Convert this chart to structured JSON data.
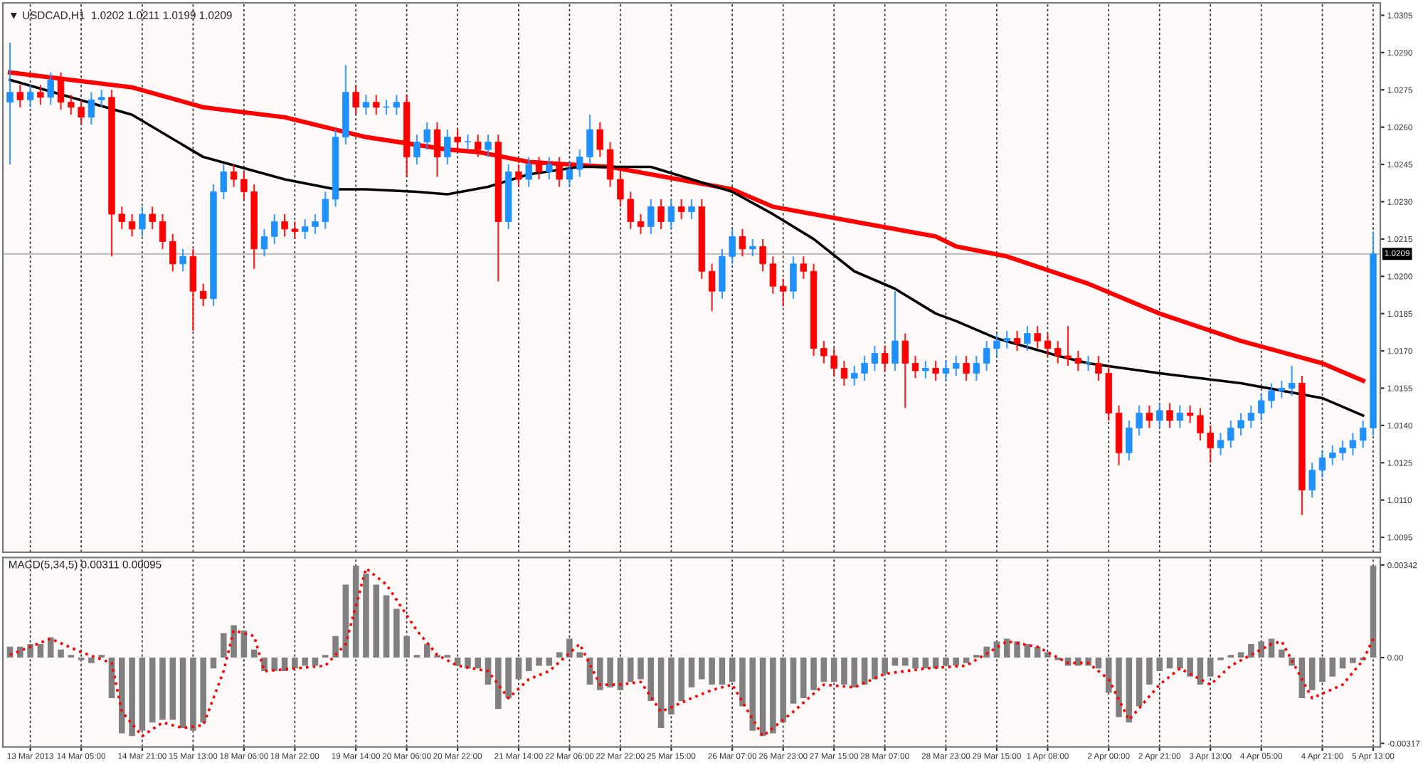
{
  "chart_data": [
    {
      "type": "candlestick",
      "title": "▼ USDCAD,H1  1.0202 1.0211 1.0199 1.0209",
      "categories": [
        null,
        null,
        null,
        null,
        null,
        null,
        null,
        null,
        null,
        null,
        null,
        null,
        null,
        null,
        null,
        null,
        null,
        null,
        null,
        null,
        null,
        null,
        null,
        null,
        null,
        null,
        null,
        null,
        null,
        null,
        null,
        null,
        null,
        null,
        null,
        null,
        null,
        null,
        null,
        null,
        null,
        null,
        null,
        null,
        null,
        null,
        null,
        null,
        null,
        null,
        null,
        null,
        null,
        null,
        null,
        null,
        null,
        null,
        null,
        null,
        null,
        null,
        null,
        null,
        null,
        null,
        null,
        null,
        null,
        null,
        null,
        null,
        null,
        null,
        null,
        null,
        null,
        null,
        null,
        null,
        null,
        null,
        null,
        null,
        null,
        null,
        null,
        null,
        null,
        null,
        null,
        null,
        null,
        null,
        null,
        null,
        null,
        null,
        null,
        null,
        null,
        null,
        null,
        null,
        null,
        null,
        null,
        null,
        null,
        null,
        null,
        null,
        null,
        null,
        null,
        null,
        null,
        null,
        null,
        null,
        null,
        null,
        null,
        null,
        null,
        null,
        null,
        null,
        null,
        null,
        null,
        null,
        null,
        null,
        null
      ],
      "ohlc": [
        [
          1.027,
          1.0294,
          1.0245,
          1.0274
        ],
        [
          1.0274,
          1.0277,
          1.0268,
          1.0271
        ],
        [
          1.0271,
          1.0277,
          1.0268,
          1.0274
        ],
        [
          1.0274,
          1.0277,
          1.0269,
          1.0272
        ],
        [
          1.0272,
          1.0282,
          1.0269,
          1.0279
        ],
        [
          1.0279,
          1.0282,
          1.0267,
          1.027
        ],
        [
          1.027,
          1.0273,
          1.0265,
          1.0268
        ],
        [
          1.0268,
          1.0271,
          1.0261,
          1.0264
        ],
        [
          1.0264,
          1.0274,
          1.0261,
          1.0271
        ],
        [
          1.0271,
          1.0275,
          1.0268,
          1.0272
        ],
        [
          1.0272,
          1.0275,
          1.0208,
          1.0225
        ],
        [
          1.0225,
          1.0228,
          1.0219,
          1.0222
        ],
        [
          1.0222,
          1.0225,
          1.0216,
          1.0219
        ],
        [
          1.0219,
          1.0228,
          1.0216,
          1.0225
        ],
        [
          1.0225,
          1.0228,
          1.0219,
          1.0222
        ],
        [
          1.0222,
          1.0225,
          1.0211,
          1.0214
        ],
        [
          1.0214,
          1.0217,
          1.0202,
          1.0205
        ],
        [
          1.0205,
          1.0211,
          1.0202,
          1.0208
        ],
        [
          1.0208,
          1.0211,
          1.0178,
          1.0194
        ],
        [
          1.0194,
          1.0197,
          1.0188,
          1.0191
        ],
        [
          1.0191,
          1.0237,
          1.0188,
          1.0234
        ],
        [
          1.0234,
          1.0245,
          1.0231,
          1.0242
        ],
        [
          1.0242,
          1.0245,
          1.0236,
          1.0239
        ],
        [
          1.0239,
          1.0242,
          1.0231,
          1.0234
        ],
        [
          1.0234,
          1.0237,
          1.0203,
          1.0211
        ],
        [
          1.0211,
          1.0219,
          1.0208,
          1.0216
        ],
        [
          1.0216,
          1.0225,
          1.0213,
          1.0222
        ],
        [
          1.0222,
          1.0225,
          1.0216,
          1.0219
        ],
        [
          1.0219,
          1.0222,
          1.0215,
          1.0218
        ],
        [
          1.0218,
          1.0223,
          1.0215,
          1.022
        ],
        [
          1.022,
          1.0225,
          1.0217,
          1.0222
        ],
        [
          1.0222,
          1.0234,
          1.0219,
          1.0231
        ],
        [
          1.0231,
          1.0259,
          1.0228,
          1.0256
        ],
        [
          1.0256,
          1.0285,
          1.0253,
          1.0274
        ],
        [
          1.0274,
          1.0277,
          1.0265,
          1.0268
        ],
        [
          1.0268,
          1.0273,
          1.0265,
          1.027
        ],
        [
          1.027,
          1.0273,
          1.0265,
          1.0268
        ],
        [
          1.0268,
          1.0271,
          1.0265,
          1.0268
        ],
        [
          1.0268,
          1.0273,
          1.0265,
          1.027
        ],
        [
          1.027,
          1.0273,
          1.024,
          1.0248
        ],
        [
          1.0248,
          1.0257,
          1.0245,
          1.0254
        ],
        [
          1.0254,
          1.0262,
          1.0251,
          1.0259
        ],
        [
          1.0259,
          1.0262,
          1.024,
          1.0248
        ],
        [
          1.0248,
          1.0259,
          1.0245,
          1.0256
        ],
        [
          1.0256,
          1.0259,
          1.0251,
          1.0254
        ],
        [
          1.0254,
          1.0257,
          1.0251,
          1.0254
        ],
        [
          1.0254,
          1.0257,
          1.0248,
          1.0251
        ],
        [
          1.0251,
          1.0257,
          1.0248,
          1.0254
        ],
        [
          1.0254,
          1.0257,
          1.0198,
          1.0222
        ],
        [
          1.0222,
          1.0245,
          1.0219,
          1.0242
        ],
        [
          1.0242,
          1.0245,
          1.0236,
          1.0239
        ],
        [
          1.0239,
          1.0248,
          1.0236,
          1.0245
        ],
        [
          1.0245,
          1.0248,
          1.0239,
          1.0242
        ],
        [
          1.0242,
          1.0248,
          1.0239,
          1.0245
        ],
        [
          1.0245,
          1.0248,
          1.0236,
          1.0239
        ],
        [
          1.0239,
          1.0246,
          1.0236,
          1.0243
        ],
        [
          1.0243,
          1.0251,
          1.024,
          1.0248
        ],
        [
          1.0248,
          1.0265,
          1.0245,
          1.0259
        ],
        [
          1.0259,
          1.0262,
          1.0248,
          1.0251
        ],
        [
          1.0251,
          1.0254,
          1.0236,
          1.0239
        ],
        [
          1.0239,
          1.0242,
          1.0228,
          1.0231
        ],
        [
          1.0231,
          1.0234,
          1.0219,
          1.0222
        ],
        [
          1.0222,
          1.0225,
          1.0217,
          1.022
        ],
        [
          1.022,
          1.0231,
          1.0217,
          1.0228
        ],
        [
          1.0228,
          1.0231,
          1.0219,
          1.0222
        ],
        [
          1.0222,
          1.0231,
          1.0219,
          1.0228
        ],
        [
          1.0228,
          1.0231,
          1.0223,
          1.0226
        ],
        [
          1.0226,
          1.0231,
          1.0223,
          1.0228
        ],
        [
          1.0228,
          1.0231,
          1.0199,
          1.0202
        ],
        [
          1.0202,
          1.0205,
          1.0186,
          1.0194
        ],
        [
          1.0194,
          1.0211,
          1.0191,
          1.0208
        ],
        [
          1.0208,
          1.0219,
          1.0205,
          1.0216
        ],
        [
          1.0216,
          1.0219,
          1.0208,
          1.0211
        ],
        [
          1.0211,
          1.0215,
          1.0208,
          1.0212
        ],
        [
          1.0212,
          1.0215,
          1.0202,
          1.0205
        ],
        [
          1.0205,
          1.0208,
          1.0193,
          1.0196
        ],
        [
          1.0196,
          1.0199,
          1.0188,
          1.0194
        ],
        [
          1.0194,
          1.0208,
          1.0191,
          1.0205
        ],
        [
          1.0205,
          1.0208,
          1.0199,
          1.0202
        ],
        [
          1.0202,
          1.0205,
          1.0168,
          1.0171
        ],
        [
          1.0171,
          1.0174,
          1.0165,
          1.0168
        ],
        [
          1.0168,
          1.0171,
          1.016,
          1.0163
        ],
        [
          1.0163,
          1.0166,
          1.0156,
          1.0159
        ],
        [
          1.0159,
          1.0164,
          1.0156,
          1.0161
        ],
        [
          1.0161,
          1.0168,
          1.0158,
          1.0165
        ],
        [
          1.0165,
          1.0172,
          1.0162,
          1.0169
        ],
        [
          1.0169,
          1.0172,
          1.0162,
          1.0165
        ],
        [
          1.0165,
          1.0194,
          1.0162,
          1.0174
        ],
        [
          1.0174,
          1.0177,
          1.0147,
          1.0165
        ],
        [
          1.0165,
          1.0168,
          1.0159,
          1.0162
        ],
        [
          1.0162,
          1.0166,
          1.0159,
          1.0163
        ],
        [
          1.0163,
          1.0166,
          1.0158,
          1.0161
        ],
        [
          1.0161,
          1.0166,
          1.0158,
          1.0163
        ],
        [
          1.0163,
          1.0168,
          1.016,
          1.0165
        ],
        [
          1.0165,
          1.0168,
          1.0158,
          1.0161
        ],
        [
          1.0161,
          1.0168,
          1.0158,
          1.0165
        ],
        [
          1.0165,
          1.0174,
          1.0162,
          1.0171
        ],
        [
          1.0171,
          1.0177,
          1.0168,
          1.0174
        ],
        [
          1.0174,
          1.0178,
          1.0171,
          1.0175
        ],
        [
          1.0175,
          1.0178,
          1.017,
          1.0173
        ],
        [
          1.0173,
          1.018,
          1.017,
          1.0177
        ],
        [
          1.0177,
          1.018,
          1.0171,
          1.0174
        ],
        [
          1.0174,
          1.0177,
          1.0168,
          1.0171
        ],
        [
          1.0171,
          1.0174,
          1.0165,
          1.0168
        ],
        [
          1.0168,
          1.018,
          1.0164,
          1.0167
        ],
        [
          1.0167,
          1.017,
          1.0162,
          1.0165
        ],
        [
          1.0165,
          1.0168,
          1.0162,
          1.0165
        ],
        [
          1.0165,
          1.0168,
          1.0158,
          1.0161
        ],
        [
          1.0161,
          1.0164,
          1.0142,
          1.0145
        ],
        [
          1.0145,
          1.0148,
          1.0124,
          1.0129
        ],
        [
          1.0129,
          1.0142,
          1.0126,
          1.0139
        ],
        [
          1.0139,
          1.0148,
          1.0136,
          1.0145
        ],
        [
          1.0145,
          1.0148,
          1.0139,
          1.0142
        ],
        [
          1.0142,
          1.0149,
          1.0139,
          1.0146
        ],
        [
          1.0146,
          1.0149,
          1.0139,
          1.0142
        ],
        [
          1.0142,
          1.0148,
          1.0139,
          1.0145
        ],
        [
          1.0145,
          1.0148,
          1.0141,
          1.0144
        ],
        [
          1.0144,
          1.0147,
          1.0134,
          1.0137
        ],
        [
          1.0137,
          1.014,
          1.0125,
          1.0131
        ],
        [
          1.0131,
          1.0137,
          1.0128,
          1.0134
        ],
        [
          1.0134,
          1.0142,
          1.0131,
          1.0139
        ],
        [
          1.0139,
          1.0145,
          1.0136,
          1.0142
        ],
        [
          1.0142,
          1.0148,
          1.0139,
          1.0145
        ],
        [
          1.0145,
          1.0153,
          1.0142,
          1.015
        ],
        [
          1.015,
          1.0157,
          1.0147,
          1.0154
        ],
        [
          1.0154,
          1.0158,
          1.0151,
          1.0155
        ],
        [
          1.0155,
          1.0164,
          1.0152,
          1.0157
        ],
        [
          1.0157,
          1.016,
          1.0104,
          1.0114
        ],
        [
          1.0114,
          1.0125,
          1.0111,
          1.0122
        ],
        [
          1.0122,
          1.013,
          1.0119,
          1.0127
        ],
        [
          1.0127,
          1.0132,
          1.0124,
          1.0129
        ],
        [
          1.0129,
          1.0134,
          1.0126,
          1.0131
        ],
        [
          1.0131,
          1.0137,
          1.0128,
          1.0134
        ],
        [
          1.0134,
          1.0142,
          1.0131,
          1.0139
        ],
        [
          1.0139,
          1.0218,
          1.0136,
          1.0209
        ]
      ],
      "series": [
        {
          "type": "line",
          "color": "#ff0000",
          "values": [
            1.0282,
            null,
            null,
            null,
            null,
            null,
            null,
            null,
            null,
            null,
            null,
            null,
            1.0276,
            null,
            null,
            null,
            null,
            null,
            null,
            1.0268,
            null,
            null,
            null,
            null,
            null,
            null,
            null,
            1.0264,
            null,
            null,
            null,
            null,
            null,
            null,
            null,
            1.0256,
            null,
            null,
            null,
            null,
            null,
            null,
            null,
            1.0251,
            null,
            null,
            1.025,
            null,
            null,
            null,
            null,
            1.0246,
            null,
            null,
            null,
            null,
            null,
            null,
            null,
            1.0244,
            null,
            null,
            null,
            null,
            null,
            null,
            null,
            1.0238,
            null,
            null,
            null,
            1.0235,
            null,
            null,
            null,
            1.0228,
            null,
            null,
            null,
            null,
            null,
            null,
            null,
            1.0222,
            null,
            null,
            null,
            null,
            null,
            null,
            null,
            1.0216,
            null,
            1.0212,
            null,
            null,
            null,
            null,
            1.0208,
            null,
            null,
            null,
            null,
            null,
            null,
            null,
            1.0197,
            null,
            null,
            null,
            null,
            null,
            null,
            1.0185,
            null,
            null,
            null,
            null,
            null,
            null,
            null,
            1.0174,
            null,
            null,
            null,
            null,
            null,
            null,
            null,
            1.0165,
            null,
            null,
            null,
            1.0158,
            null
          ]
        },
        {
          "type": "line",
          "color": "#000000",
          "values": [
            1.0279,
            null,
            null,
            null,
            null,
            null,
            null,
            null,
            null,
            null,
            null,
            null,
            1.0265,
            null,
            null,
            null,
            null,
            null,
            null,
            1.0248,
            null,
            null,
            null,
            null,
            null,
            null,
            null,
            1.0239,
            null,
            null,
            null,
            null,
            1.0235,
            null,
            null,
            1.0235,
            null,
            null,
            null,
            null,
            1.0234,
            null,
            null,
            1.0233,
            null,
            null,
            null,
            1.0236,
            null,
            null,
            null,
            1.0241,
            null,
            null,
            null,
            null,
            1.0244,
            null,
            null,
            null,
            null,
            null,
            null,
            1.0244,
            null,
            null,
            null,
            1.0239,
            null,
            null,
            null,
            1.0234,
            null,
            null,
            null,
            1.0225,
            null,
            null,
            null,
            1.0215,
            null,
            null,
            null,
            1.0202,
            null,
            null,
            null,
            1.0195,
            null,
            null,
            null,
            1.0185,
            null,
            1.0182,
            null,
            null,
            null,
            1.0175,
            null,
            null,
            null,
            null,
            null,
            1.0168,
            null,
            null,
            1.0165,
            null,
            null,
            null,
            null,
            null,
            null,
            1.0161,
            null,
            null,
            null,
            null,
            null,
            null,
            null,
            1.0157,
            null,
            null,
            null,
            null,
            null,
            null,
            null,
            1.0151,
            null,
            null,
            null,
            1.0144,
            null
          ]
        }
      ],
      "ylim": [
        1.0089,
        1.031
      ],
      "yticks": [
        1.0095,
        {
          "value": 1.011,
          "label": "1.0110"
        },
        1.0125,
        {
          "value": 1.014,
          "label": "1.0140"
        },
        1.0155,
        {
          "value": 1.017,
          "label": "1.0170"
        },
        1.0185,
        {
          "value": 1.02,
          "label": "1.0200"
        },
        1.0215,
        {
          "value": 1.023,
          "label": "1.0230"
        },
        1.0245,
        {
          "value": 1.026,
          "label": "1.0260"
        },
        1.0275,
        {
          "value": 1.029,
          "label": "1.0290"
        },
        1.0305
      ],
      "grid": "x",
      "tick_labels": "y",
      "ref_lines": [
        {
          "axis": "y",
          "value": 1.0209,
          "label": "1.0209",
          "color": "#c0c0c0"
        }
      ]
    },
    {
      "type": "bar",
      "title": "MACD(5,34,5) 0.00311 0.00095",
      "categories": [
        null,
        null,
        "13 Mar 2013",
        null,
        null,
        null,
        null,
        "14 Mar 05:00",
        null,
        null,
        null,
        null,
        null,
        "14 Mar 21:00",
        null,
        null,
        null,
        null,
        "15 Mar 13:00",
        null,
        null,
        null,
        null,
        "18 Mar 06:00",
        null,
        null,
        null,
        null,
        "18 Mar 22:00",
        null,
        null,
        null,
        null,
        null,
        "19 Mar 14:00",
        null,
        null,
        null,
        null,
        "20 Mar 06:00",
        null,
        null,
        null,
        null,
        "20 Mar 22:00",
        null,
        null,
        null,
        null,
        null,
        "21 Mar 14:00",
        null,
        null,
        null,
        null,
        "22 Mar 06:00",
        null,
        null,
        null,
        null,
        "22 Mar 22:00",
        null,
        null,
        null,
        null,
        "25 Mar 15:00",
        null,
        null,
        null,
        null,
        null,
        "26 Mar 07:00",
        null,
        null,
        null,
        null,
        "26 Mar 23:00",
        null,
        null,
        null,
        null,
        "27 Mar 15:00",
        null,
        null,
        null,
        null,
        "28 Mar 07:00",
        null,
        null,
        null,
        null,
        null,
        "28 Mar 23:00",
        null,
        null,
        null,
        null,
        "29 Mar 15:00",
        null,
        null,
        null,
        null,
        "1 Apr 08:00",
        null,
        null,
        null,
        null,
        null,
        "2 Apr 00:00",
        null,
        null,
        null,
        null,
        "2 Apr 21:00",
        null,
        null,
        null,
        null,
        "3 Apr 13:00",
        null,
        null,
        null,
        null,
        "4 Apr 05:00",
        null,
        null,
        null,
        null,
        null,
        "4 Apr 21:00",
        null,
        null,
        null,
        null,
        "5 Apr 13:00"
      ],
      "series": [
        {
          "type": "bar",
          "color": "#808080",
          "values": [
            0.0004,
            0.0004,
            0.0005,
            0.0005,
            0.00075,
            0.0003,
            0.0001,
            -0.0001,
            -0.0002,
            0.0001,
            -0.0015,
            -0.0028,
            -0.0029,
            -0.0027,
            -0.0024,
            -0.0023,
            -0.0023,
            -0.0026,
            -0.0027,
            -0.0024,
            -0.0004,
            0.0009,
            0.0012,
            0.001,
            0.0003,
            -0.0005,
            -0.0005,
            -0.0005,
            -0.0004,
            -0.0003,
            -0.0003,
            0.0001,
            0.0008,
            0.0027,
            0.0034,
            0.0031,
            0.0027,
            0.0023,
            0.0018,
            0.0008,
            0.0001,
            0.0005,
            0.0001,
            0.0001,
            -0.0003,
            -0.0004,
            -0.0004,
            -0.001,
            -0.0019,
            -0.0015,
            -0.0008,
            -0.0005,
            -0.0003,
            -0.0003,
            0.0002,
            0.0007,
            0.0002,
            -0.001,
            -0.0012,
            -0.0011,
            -0.0012,
            -0.0009,
            -0.0008,
            -0.0016,
            -0.0026,
            -0.0021,
            -0.0016,
            -0.0011,
            -0.0008,
            -0.001,
            -0.001,
            -0.0009,
            -0.0018,
            -0.0027,
            -0.0029,
            -0.0028,
            -0.0024,
            -0.0017,
            -0.0015,
            -0.0012,
            -0.0009,
            -0.0009,
            -0.001,
            -0.0011,
            -0.001,
            -0.0008,
            -0.0006,
            -0.0003,
            -0.0003,
            -0.0004,
            -0.0004,
            -0.0004,
            -0.0003,
            -0.0003,
            -0.0002,
            0.0001,
            0.0004,
            0.0006,
            0.0007,
            0.0006,
            0.0005,
            0.0004,
            0.0002,
            -0.0001,
            -0.0003,
            -0.0003,
            -0.0003,
            -0.0004,
            -0.0013,
            -0.0022,
            -0.0024,
            -0.0018,
            -0.001,
            -0.0005,
            -0.0004,
            -0.0004,
            -0.0007,
            -0.001,
            -0.0007,
            -0.0001,
            0.0001,
            0.0002,
            0.0005,
            0.0006,
            0.0007,
            0.0003,
            -0.0003,
            -0.0015,
            -0.0012,
            -0.0009,
            -0.0007,
            -0.0004,
            -0.0002,
            -0.0001,
            0.0034
          ]
        },
        {
          "type": "line",
          "color": "#ff0000",
          "line_style": "dotted",
          "values": [
            0.0001,
            null,
            null,
            null,
            0.0007,
            null,
            null,
            0.0002,
            null,
            null,
            -0.0002,
            -0.002,
            null,
            -0.0029,
            null,
            -0.0024,
            null,
            -0.0026,
            null,
            -0.0025,
            null,
            -0.0005,
            0.001,
            null,
            0.0008,
            -0.0005,
            null,
            null,
            -0.0004,
            null,
            null,
            -0.0003,
            null,
            0.0005,
            null,
            0.0033,
            null,
            0.0027,
            null,
            null,
            0.001,
            null,
            0.0001,
            null,
            -0.0003,
            null,
            null,
            -0.0005,
            null,
            -0.0015,
            null,
            -0.0008,
            null,
            -0.0005,
            null,
            null,
            0.0005,
            null,
            -0.001,
            null,
            -0.001,
            null,
            -0.0009,
            null,
            -0.002,
            null,
            null,
            -0.0015,
            null,
            -0.0012,
            null,
            -0.001,
            null,
            null,
            -0.0029,
            null,
            null,
            -0.002,
            null,
            null,
            -0.001,
            null,
            null,
            -0.0011,
            null,
            null,
            -0.0006,
            null,
            null,
            null,
            -0.0004,
            null,
            null,
            null,
            -0.0003,
            null,
            null,
            null,
            0.0006,
            null,
            null,
            0.0004,
            null,
            null,
            -0.0002,
            null,
            -0.0002,
            null,
            -0.0008,
            null,
            -0.0023,
            null,
            null,
            -0.001,
            null,
            -0.0004,
            null,
            null,
            -0.001,
            null,
            -0.0003,
            null,
            null,
            null,
            0.0005,
            0.0006,
            null,
            null,
            -0.0015,
            null,
            null,
            -0.001,
            null,
            -0.0001,
            0.0007
          ]
        }
      ],
      "ylim": [
        -0.0033,
        0.0037
      ],
      "yticks": [
        0.00342,
        {
          "value": 0,
          "label": "0.00"
        },
        -0.00317
      ],
      "grid": "x"
    }
  ]
}
